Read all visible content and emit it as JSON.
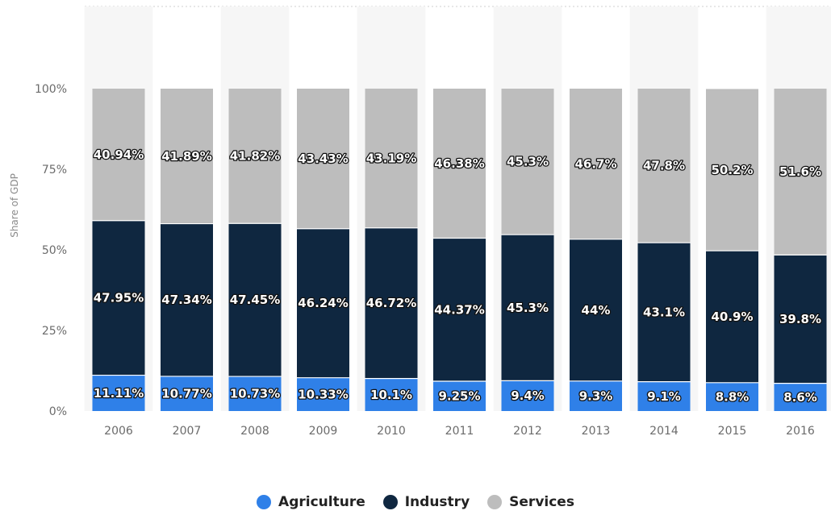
{
  "chart_data": {
    "type": "bar",
    "stacked": true,
    "categories": [
      "2006",
      "2007",
      "2008",
      "2009",
      "2010",
      "2011",
      "2012",
      "2013",
      "2014",
      "2015",
      "2016"
    ],
    "series": [
      {
        "name": "Agriculture",
        "color": "#2f80e8",
        "values": [
          11.11,
          10.77,
          10.73,
          10.33,
          10.1,
          9.25,
          9.4,
          9.3,
          9.1,
          8.8,
          8.6
        ],
        "labels": [
          "11.11%",
          "10.77%",
          "10.73%",
          "10.33%",
          "10.1%",
          "9.25%",
          "9.4%",
          "9.3%",
          "9.1%",
          "8.8%",
          "8.6%"
        ]
      },
      {
        "name": "Industry",
        "color": "#0f2740",
        "values": [
          47.95,
          47.34,
          47.45,
          46.24,
          46.72,
          44.37,
          45.3,
          44,
          43.1,
          40.9,
          39.8
        ],
        "labels": [
          "47.95%",
          "47.34%",
          "47.45%",
          "46.24%",
          "46.72%",
          "44.37%",
          "45.3%",
          "44%",
          "43.1%",
          "40.9%",
          "39.8%"
        ]
      },
      {
        "name": "Services",
        "color": "#bdbdbd",
        "values": [
          40.94,
          41.89,
          41.82,
          43.43,
          43.19,
          46.38,
          45.3,
          46.7,
          47.8,
          50.2,
          51.6
        ],
        "labels": [
          "40.94%",
          "41.89%",
          "41.82%",
          "43.43%",
          "43.19%",
          "46.38%",
          "45.3%",
          "46.7%",
          "47.8%",
          "50.2%",
          "51.6%"
        ]
      }
    ],
    "ylabel": "Share of GDP",
    "xlabel": "",
    "ylim": [
      0,
      100
    ],
    "yticks": [
      "0%",
      "25%",
      "50%",
      "75%",
      "100%"
    ],
    "grid": true,
    "legend_position": "bottom-center"
  }
}
